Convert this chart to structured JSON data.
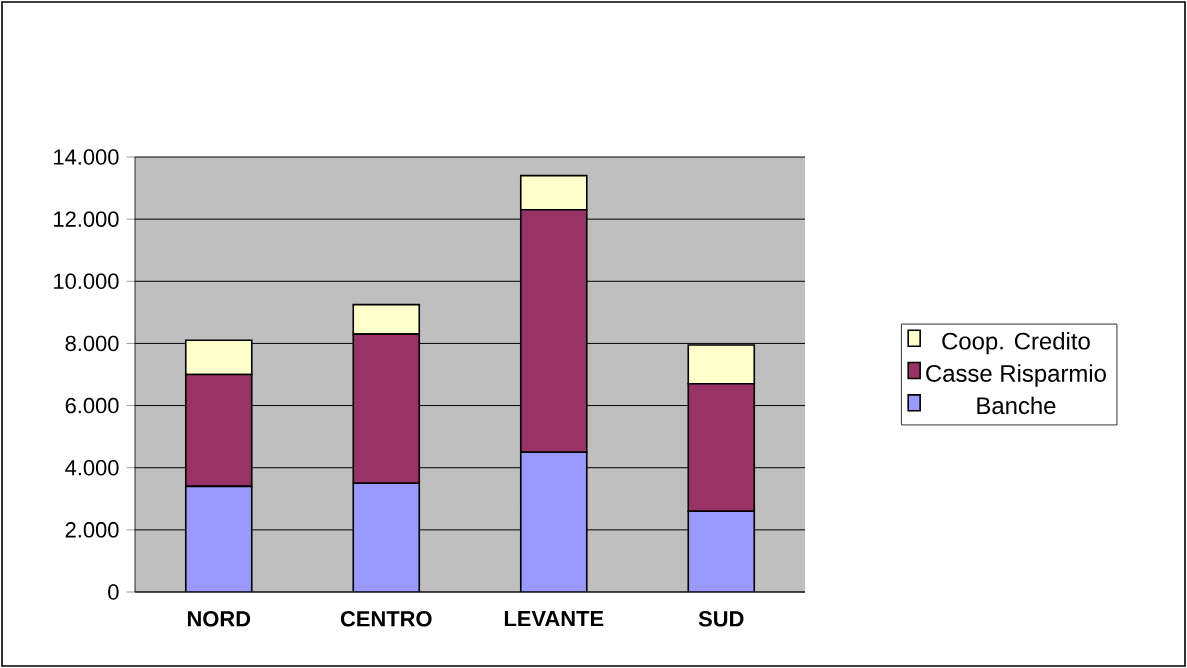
{
  "chart_data": {
    "type": "bar",
    "stacked": true,
    "categories": [
      "NORD",
      "CENTRO",
      "LEVANTE",
      "SUD"
    ],
    "series": [
      {
        "name": "Banche",
        "color": "#9999ff",
        "values": [
          3400,
          3500,
          4500,
          2600
        ]
      },
      {
        "name": "Casse Risparmio",
        "color": "#993366",
        "values": [
          3600,
          4800,
          7800,
          4100
        ]
      },
      {
        "name": "Coop. Credito",
        "color": "#ffffcc",
        "values": [
          1100,
          950,
          1100,
          1250
        ]
      }
    ],
    "ylim": [
      0,
      14000
    ],
    "yticks": [
      0,
      {
        "value": 2000,
        "label": "2.000"
      },
      {
        "value": 4000,
        "label": "4.000"
      },
      {
        "value": 6000,
        "label": "6.000"
      },
      {
        "value": 8000,
        "label": "8.000"
      },
      {
        "value": 10000,
        "label": "10.000"
      },
      {
        "value": 12000,
        "label": "12.000"
      },
      {
        "value": 14000,
        "label": "14.000"
      }
    ],
    "grid": "y",
    "legend": "right"
  }
}
